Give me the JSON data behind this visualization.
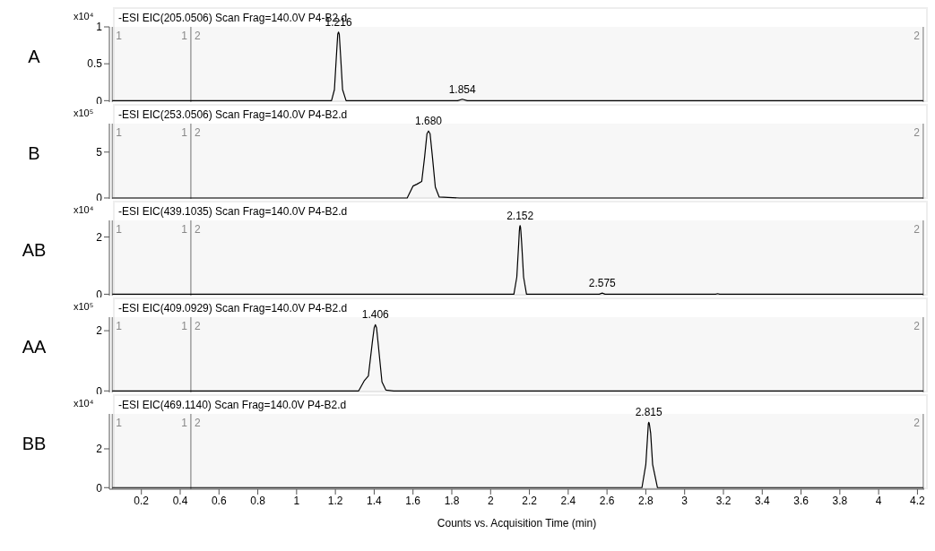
{
  "chart_data": [
    {
      "type": "line",
      "title": "-ESI EIC(205.0506) Scan Frag=140.0V P4-B2.d",
      "ylabel": "A",
      "annotations": [
        "x10⁴",
        {
          "text": "1.216",
          "x": 1.216,
          "y": 0.93
        },
        {
          "text": "1.854",
          "x": 1.854,
          "y": 0.02
        }
      ],
      "xlim": [
        0.035,
        4.235
      ],
      "ylim": [
        -0.02,
        1.0
      ],
      "yticks": [
        0,
        0.5,
        1
      ],
      "tick_labels": "y",
      "grid": false,
      "series": [
        {
          "color": "#000000",
          "x": [
            0.05,
            1.18,
            1.195,
            1.205,
            1.212,
            1.216,
            1.22,
            1.227,
            1.237,
            1.255,
            1.83,
            1.854,
            1.88,
            4.23
          ],
          "values": [
            0,
            0,
            0.15,
            0.6,
            0.9,
            0.93,
            0.9,
            0.6,
            0.15,
            0,
            0,
            0.02,
            0,
            0
          ]
        }
      ],
      "ref_lines": [
        {
          "axis": "x",
          "value": 0.05,
          "color": "#888888"
        },
        {
          "axis": "x",
          "value": 0.455,
          "color": "#888888"
        },
        {
          "axis": "x",
          "value": 4.23,
          "color": "#888888"
        }
      ],
      "bands": [
        {
          "axis": "x",
          "from": 0.05,
          "to": 0.455,
          "label": "1",
          "color": "#888888"
        },
        {
          "axis": "x",
          "from": 0.455,
          "to": 4.23,
          "label": "2",
          "color": "#888888"
        }
      ]
    },
    {
      "type": "line",
      "title": "-ESI EIC(253.0506) Scan Frag=140.0V P4-B2.d",
      "ylabel": "B",
      "annotations": [
        "x10⁵",
        {
          "text": "1.680",
          "x": 1.68,
          "y": 7.3
        }
      ],
      "xlim": [
        0.035,
        4.235
      ],
      "ylim": [
        -0.1,
        8.1
      ],
      "yticks": [
        0,
        5
      ],
      "tick_labels": "y",
      "grid": false,
      "series": [
        {
          "color": "#000000",
          "x": [
            0.05,
            1.57,
            1.6,
            1.62,
            1.645,
            1.66,
            1.672,
            1.68,
            1.688,
            1.7,
            1.715,
            1.735,
            1.84,
            4.23
          ],
          "values": [
            0,
            0,
            1.3,
            1.5,
            1.8,
            4.5,
            7,
            7.3,
            7,
            4.5,
            1.2,
            0.1,
            0,
            0
          ]
        }
      ],
      "ref_lines": [
        {
          "axis": "x",
          "value": 0.05,
          "color": "#888888"
        },
        {
          "axis": "x",
          "value": 0.455,
          "color": "#888888"
        },
        {
          "axis": "x",
          "value": 4.23,
          "color": "#888888"
        }
      ],
      "bands": [
        {
          "axis": "x",
          "from": 0.05,
          "to": 0.455,
          "label": "1",
          "color": "#888888"
        },
        {
          "axis": "x",
          "from": 0.455,
          "to": 4.23,
          "label": "2",
          "color": "#888888"
        }
      ]
    },
    {
      "type": "line",
      "title": "-ESI EIC(439.1035) Scan Frag=140.0V P4-B2.d",
      "ylabel": "AB",
      "annotations": [
        "x10⁴",
        {
          "text": "2.152",
          "x": 2.152,
          "y": 2.4
        },
        {
          "text": "2.575",
          "x": 2.575,
          "y": 0.04
        }
      ],
      "xlim": [
        0.035,
        4.235
      ],
      "ylim": [
        -0.05,
        2.58
      ],
      "yticks": [
        0,
        2
      ],
      "tick_labels": "y",
      "grid": false,
      "series": [
        {
          "color": "#000000",
          "x": [
            0.05,
            2.12,
            2.135,
            2.145,
            2.148,
            2.15,
            2.152,
            2.154,
            2.156,
            2.16,
            2.17,
            2.185,
            2.56,
            2.575,
            2.59,
            3.16,
            3.17,
            3.18,
            4.23
          ],
          "values": [
            0,
            0,
            0.6,
            1.8,
            2.2,
            2.35,
            2.4,
            2.35,
            2.2,
            1.8,
            0.6,
            0,
            0,
            0.04,
            0,
            0,
            0.02,
            0,
            0
          ]
        }
      ],
      "ref_lines": [
        {
          "axis": "x",
          "value": 0.05,
          "color": "#888888"
        },
        {
          "axis": "x",
          "value": 0.455,
          "color": "#888888"
        },
        {
          "axis": "x",
          "value": 4.23,
          "color": "#888888"
        }
      ],
      "bands": [
        {
          "axis": "x",
          "from": 0.05,
          "to": 0.455,
          "label": "1",
          "color": "#888888"
        },
        {
          "axis": "x",
          "from": 0.455,
          "to": 4.23,
          "label": "2",
          "color": "#888888"
        }
      ]
    },
    {
      "type": "line",
      "title": "-ESI EIC(409.0929) Scan Frag=140.0V P4-B2.d",
      "ylabel": "AA",
      "annotations": [
        "x10⁵",
        {
          "text": "1.406",
          "x": 1.406,
          "y": 2.2
        }
      ],
      "xlim": [
        0.035,
        4.235
      ],
      "ylim": [
        -0.05,
        2.45
      ],
      "yticks": [
        0,
        2
      ],
      "tick_labels": "y",
      "grid": false,
      "series": [
        {
          "color": "#000000",
          "x": [
            0.05,
            1.32,
            1.35,
            1.37,
            1.39,
            1.4,
            1.406,
            1.412,
            1.42,
            1.44,
            1.46,
            1.5,
            4.23
          ],
          "values": [
            0,
            0,
            0.35,
            0.5,
            1.6,
            2.1,
            2.2,
            2.1,
            1.6,
            0.3,
            0.03,
            0,
            0
          ]
        }
      ],
      "ref_lines": [
        {
          "axis": "x",
          "value": 0.05,
          "color": "#888888"
        },
        {
          "axis": "x",
          "value": 0.455,
          "color": "#888888"
        },
        {
          "axis": "x",
          "value": 4.23,
          "color": "#888888"
        }
      ],
      "bands": [
        {
          "axis": "x",
          "from": 0.05,
          "to": 0.455,
          "label": "1",
          "color": "#888888"
        },
        {
          "axis": "x",
          "from": 0.455,
          "to": 4.23,
          "label": "2",
          "color": "#888888"
        }
      ]
    },
    {
      "type": "line",
      "title": "-ESI EIC(469.1140) Scan Frag=140.0V P4-B2.d",
      "ylabel": "BB",
      "xlabel": "Counts vs. Acquisition Time (min)",
      "annotations": [
        "x10⁴",
        {
          "text": "2.815",
          "x": 2.815,
          "y": 3.37
        }
      ],
      "xlim": [
        0.035,
        4.235
      ],
      "xticks": [
        0.2,
        0.4,
        0.6,
        0.8,
        1,
        1.2,
        1.4,
        1.6,
        1.8,
        2,
        2.2,
        2.4,
        2.6,
        2.8,
        3,
        3.2,
        3.4,
        3.6,
        3.8,
        4,
        4.2
      ],
      "ylim": [
        -0.08,
        3.8
      ],
      "yticks": [
        0,
        2
      ],
      "grid": false,
      "series": [
        {
          "color": "#000000",
          "x": [
            0.05,
            2.78,
            2.8,
            2.81,
            2.813,
            2.815,
            2.818,
            2.825,
            2.835,
            2.86,
            4.23
          ],
          "values": [
            0,
            0,
            1.2,
            2.8,
            3.3,
            3.37,
            3.3,
            2.8,
            1.2,
            0,
            0
          ]
        }
      ],
      "ref_lines": [
        {
          "axis": "x",
          "value": 0.05,
          "color": "#888888"
        },
        {
          "axis": "x",
          "value": 0.455,
          "color": "#888888"
        },
        {
          "axis": "x",
          "value": 4.23,
          "color": "#888888"
        }
      ],
      "bands": [
        {
          "axis": "x",
          "from": 0.05,
          "to": 0.455,
          "label": "1",
          "color": "#888888"
        },
        {
          "axis": "x",
          "from": 0.455,
          "to": 4.23,
          "label": "2",
          "color": "#888888"
        }
      ]
    }
  ]
}
